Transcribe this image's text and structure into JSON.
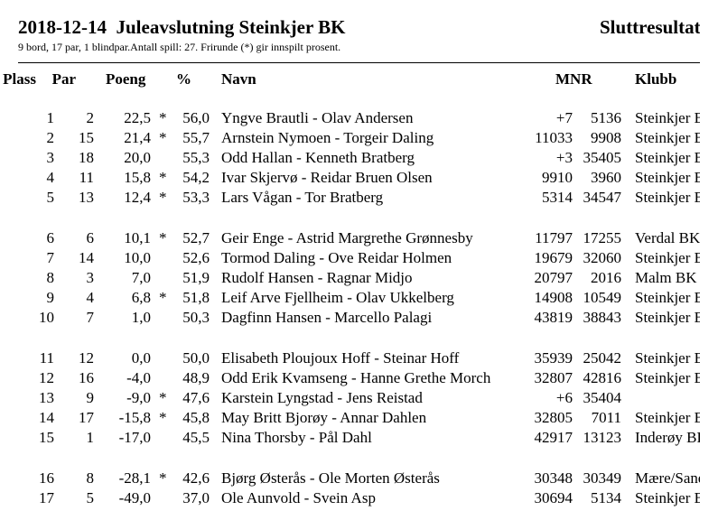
{
  "header": {
    "title": "2018-12-14  Juleavslutning Steinkjer BK",
    "right": "Sluttresultat",
    "subtitle": "9 bord, 17 par, 1 blindpar.Antall spill: 27. Frirunde (*) gir innspilt prosent."
  },
  "columns": {
    "plass": "Plass",
    "par": "Par",
    "poeng": "Poeng",
    "pct": "%",
    "navn": "Navn",
    "mnr": "MNR",
    "klubb": "Klubb"
  },
  "rows": [
    {
      "plass": "1",
      "par": "2",
      "poeng": "22,5",
      "star": "*",
      "pct": "56,0",
      "navn": "Yngve Brautli - Olav Andersen",
      "m1": "+7",
      "m2": "5136",
      "klubb": "Steinkjer BK"
    },
    {
      "plass": "2",
      "par": "15",
      "poeng": "21,4",
      "star": "*",
      "pct": "55,7",
      "navn": "Arnstein Nymoen - Torgeir Daling",
      "m1": "11033",
      "m2": "9908",
      "klubb": "Steinkjer BK"
    },
    {
      "plass": "3",
      "par": "18",
      "poeng": "20,0",
      "star": "",
      "pct": "55,3",
      "navn": "Odd Hallan - Kenneth Bratberg",
      "m1": "+3",
      "m2": "35405",
      "klubb": "Steinkjer BK"
    },
    {
      "plass": "4",
      "par": "11",
      "poeng": "15,8",
      "star": "*",
      "pct": "54,2",
      "navn": "Ivar Skjervø - Reidar Bruen Olsen",
      "m1": "9910",
      "m2": "3960",
      "klubb": "Steinkjer BK"
    },
    {
      "plass": "5",
      "par": "13",
      "poeng": "12,4",
      "star": "*",
      "pct": "53,3",
      "navn": "Lars Vågan - Tor Bratberg",
      "m1": "5314",
      "m2": "34547",
      "klubb": "Steinkjer BK"
    },
    {
      "plass": "6",
      "par": "6",
      "poeng": "10,1",
      "star": "*",
      "pct": "52,7",
      "navn": "Geir Enge - Astrid Margrethe Grønnesby",
      "m1": "11797",
      "m2": "17255",
      "klubb": "Verdal BK"
    },
    {
      "plass": "7",
      "par": "14",
      "poeng": "10,0",
      "star": "",
      "pct": "52,6",
      "navn": "Tormod Daling - Ove Reidar Holmen",
      "m1": "19679",
      "m2": "32060",
      "klubb": "Steinkjer BK"
    },
    {
      "plass": "8",
      "par": "3",
      "poeng": "7,0",
      "star": "",
      "pct": "51,9",
      "navn": "Rudolf Hansen - Ragnar Midjo",
      "m1": "20797",
      "m2": "2016",
      "klubb": "Malm BK"
    },
    {
      "plass": "9",
      "par": "4",
      "poeng": "6,8",
      "star": "*",
      "pct": "51,8",
      "navn": "Leif Arve Fjellheim - Olav Ukkelberg",
      "m1": "14908",
      "m2": "10549",
      "klubb": "Steinkjer BK"
    },
    {
      "plass": "10",
      "par": "7",
      "poeng": "1,0",
      "star": "",
      "pct": "50,3",
      "navn": "Dagfinn Hansen - Marcello Palagi",
      "m1": "43819",
      "m2": "38843",
      "klubb": "Steinkjer BK"
    },
    {
      "plass": "11",
      "par": "12",
      "poeng": "0,0",
      "star": "",
      "pct": "50,0",
      "navn": "Elisabeth Ploujoux Hoff - Steinar Hoff",
      "m1": "35939",
      "m2": "25042",
      "klubb": "Steinkjer BK"
    },
    {
      "plass": "12",
      "par": "16",
      "poeng": "-4,0",
      "star": "",
      "pct": "48,9",
      "navn": "Odd Erik Kvamseng - Hanne Grethe Morch",
      "m1": "32807",
      "m2": "42816",
      "klubb": "Steinkjer BK"
    },
    {
      "plass": "13",
      "par": "9",
      "poeng": "-9,0",
      "star": "*",
      "pct": "47,6",
      "navn": "Karstein Lyngstad - Jens Reistad",
      "m1": "+6",
      "m2": "35404",
      "klubb": ""
    },
    {
      "plass": "14",
      "par": "17",
      "poeng": "-15,8",
      "star": "*",
      "pct": "45,8",
      "navn": "May Britt Bjorøy - Annar Dahlen",
      "m1": "32805",
      "m2": "7011",
      "klubb": "Steinkjer BK"
    },
    {
      "plass": "15",
      "par": "1",
      "poeng": "-17,0",
      "star": "",
      "pct": "45,5",
      "navn": "Nina Thorsby - Pål Dahl",
      "m1": "42917",
      "m2": "13123",
      "klubb": "Inderøy BK"
    },
    {
      "plass": "16",
      "par": "8",
      "poeng": "-28,1",
      "star": "*",
      "pct": "42,6",
      "navn": "Bjørg Østerås - Ole Morten Østerås",
      "m1": "30348",
      "m2": "30349",
      "klubb": "Mære/Sandvollan"
    },
    {
      "plass": "17",
      "par": "5",
      "poeng": "-49,0",
      "star": "",
      "pct": "37,0",
      "navn": "Ole Aunvold - Svein Asp",
      "m1": "30694",
      "m2": "5134",
      "klubb": "Steinkjer BK"
    }
  ]
}
